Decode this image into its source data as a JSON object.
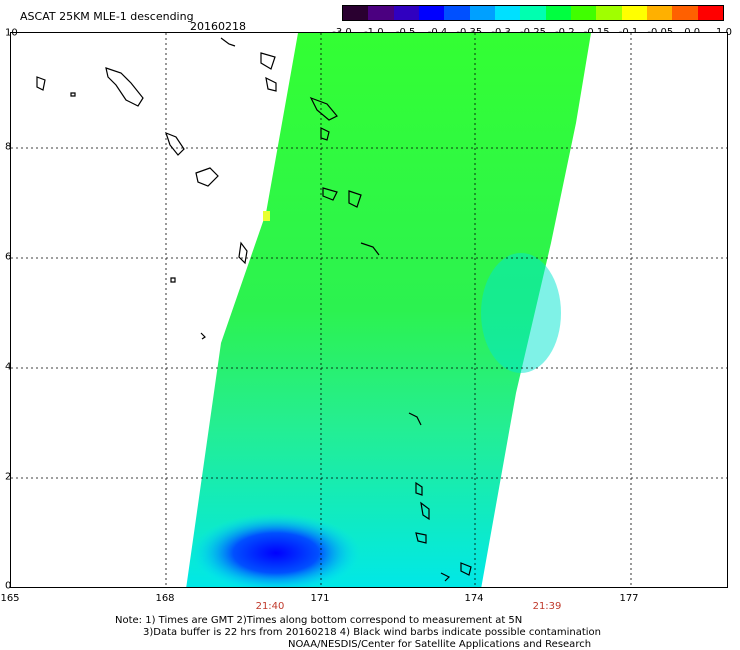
{
  "header": {
    "title": "ASCAT 25KM MLE-1 descending",
    "date": "20160218"
  },
  "colorbar": {
    "labels": [
      "-3.0",
      "-1.0",
      "-0.5",
      "-0.4",
      "-0.35",
      "-0.3",
      "-0.25",
      "-0.2",
      "-0.15",
      "-0.1",
      "-0.05",
      "0.0",
      "1.0"
    ],
    "colors": [
      "#2a0030",
      "#4b0080",
      "#3000c0",
      "#0000ff",
      "#0050ff",
      "#00a0ff",
      "#00e0ff",
      "#00ffb0",
      "#00ff40",
      "#40ff00",
      "#a0ff00",
      "#ffff00",
      "#ffb000",
      "#ff6000",
      "#ff0000"
    ]
  },
  "axes": {
    "x_ticks": [
      "165",
      "168",
      "171",
      "174",
      "177"
    ],
    "y_ticks": [
      "0",
      "2",
      "4",
      "6",
      "8",
      "10"
    ],
    "times": [
      "21:40",
      "21:39"
    ]
  },
  "notes": {
    "line1": "Note: 1) Times are GMT 2)Times along bottom correspond to measurement at 5N",
    "line2": "3)Data buffer is 22 hrs from 20160218 4) Black wind barbs indicate possible contamination",
    "line3": "NOAA/NESDIS/Center for Satellite Applications and Research"
  }
}
